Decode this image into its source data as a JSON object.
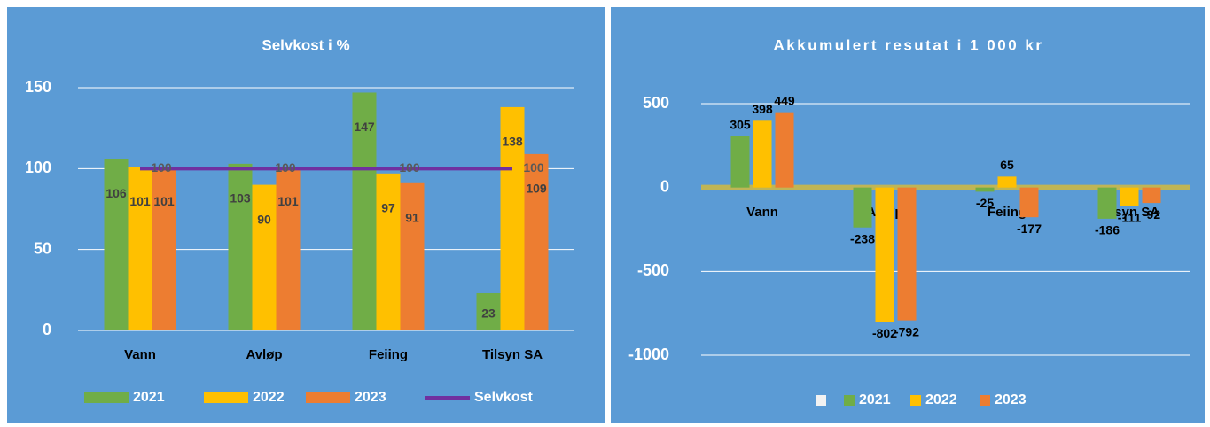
{
  "chart_data": [
    {
      "type": "bar",
      "title": "Selvkost i %",
      "categories": [
        "Vann",
        "Avløp",
        "Feiing",
        "Tilsyn SA"
      ],
      "series": [
        {
          "name": "2021",
          "color": "#70ad47",
          "values": [
            106,
            103,
            147,
            23
          ]
        },
        {
          "name": "2022",
          "color": "#ffc000",
          "values": [
            101,
            90,
            97,
            138
          ]
        },
        {
          "name": "2023",
          "color": "#ed7d31",
          "values": [
            101,
            101,
            91,
            109
          ]
        },
        {
          "name": "Selvkost",
          "color": "#7030a0",
          "type": "line",
          "values": [
            100,
            100,
            100,
            100
          ]
        }
      ],
      "ylim": [
        0,
        150
      ],
      "yticks": [
        0,
        50,
        100,
        150
      ],
      "grid": true,
      "legend": "bottom"
    },
    {
      "type": "bar",
      "title": "Akkumulert resutat i 1 000 kr",
      "categories": [
        "Vann",
        "Avløp",
        "Feiing",
        "Tilsyn SA"
      ],
      "series": [
        {
          "name": "2021",
          "color": "#70ad47",
          "values": [
            305,
            -238,
            -25,
            -186
          ]
        },
        {
          "name": "2022",
          "color": "#ffc000",
          "values": [
            398,
            -802,
            65,
            -111
          ]
        },
        {
          "name": "2023",
          "color": "#ed7d31",
          "values": [
            449,
            -792,
            -177,
            -92
          ]
        }
      ],
      "ylim": [
        -1000,
        500
      ],
      "yticks": [
        -1000,
        -500,
        0,
        500
      ],
      "grid": true,
      "legend": "bottom"
    }
  ]
}
